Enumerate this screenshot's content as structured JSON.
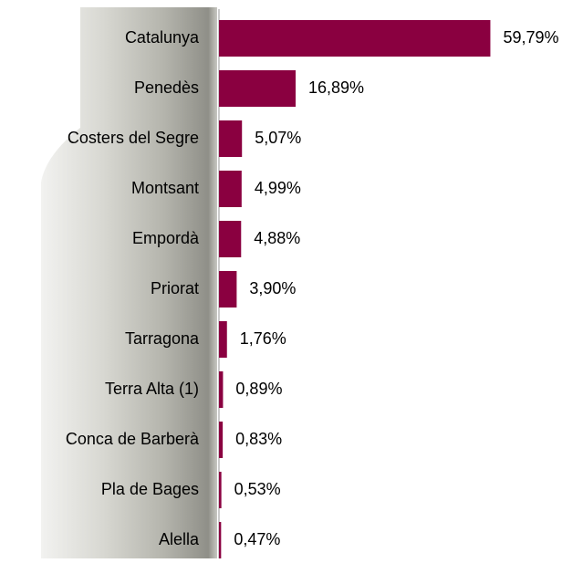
{
  "chart_data": {
    "type": "hbar",
    "categories": [
      "Catalunya",
      "Penedès",
      "Costers del Segre",
      "Montsant",
      "Empordà",
      "Priorat",
      "Tarragona",
      "Terra Alta (1)",
      "Conca de Barberà",
      "Pla de Bages",
      "Alella"
    ],
    "values": [
      59.79,
      16.89,
      5.07,
      4.99,
      4.88,
      3.9,
      1.76,
      0.89,
      0.83,
      0.53,
      0.47
    ],
    "value_labels": [
      "59,79%",
      "16,89%",
      "5,07%",
      "4,99%",
      "4,88%",
      "3,90%",
      "1,76%",
      "0,89%",
      "0,83%",
      "0,53%",
      "0,47%"
    ],
    "color": "#8a0040",
    "xlim": [
      0,
      80
    ]
  }
}
